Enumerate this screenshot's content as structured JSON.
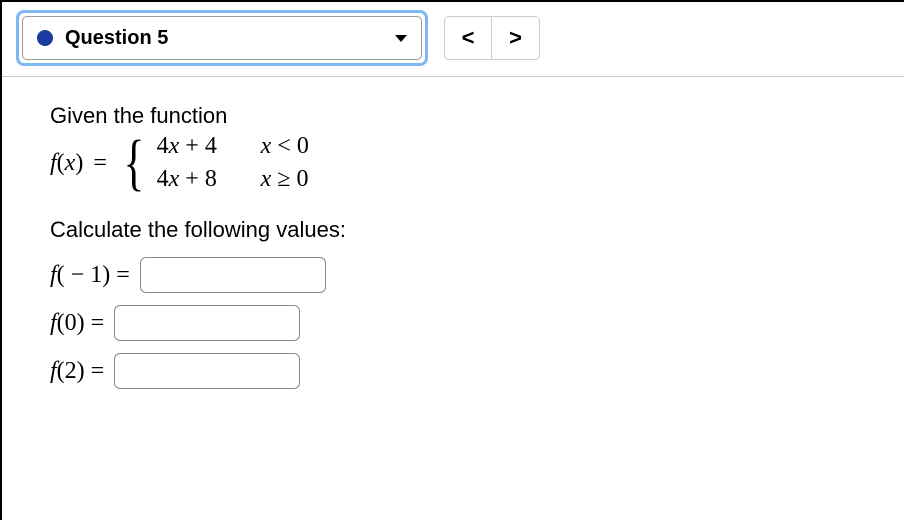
{
  "topbar": {
    "dropdown_label": "Question 5",
    "dot_color": "#1a3a9e",
    "prev_label": "<",
    "next_label": ">"
  },
  "problem": {
    "prompt_line1": "Given the function",
    "fx_lhs_f": "f",
    "fx_lhs_open": "(",
    "fx_lhs_var": "x",
    "fx_lhs_close": ")",
    "equals": "=",
    "cases": [
      {
        "expr_a": "4",
        "expr_var": "x",
        "expr_b": " + 4",
        "cond_var": "x",
        "cond_rel": " < 0"
      },
      {
        "expr_a": "4",
        "expr_var": "x",
        "expr_b": " + 8",
        "cond_var": "x",
        "cond_rel": " ≥ 0"
      }
    ],
    "prompt_line2": "Calculate the following values:"
  },
  "answers": [
    {
      "f": "f",
      "open": "(",
      "arg": " − 1",
      "close": ") =",
      "value": ""
    },
    {
      "f": "f",
      "open": "(",
      "arg": "0",
      "close": ") =",
      "value": ""
    },
    {
      "f": "f",
      "open": "(",
      "arg": "2",
      "close": ") =",
      "value": ""
    }
  ],
  "style": {
    "highlight_border": "#7fb7f2",
    "input_border": "#888888",
    "divider": "#cccccc"
  }
}
